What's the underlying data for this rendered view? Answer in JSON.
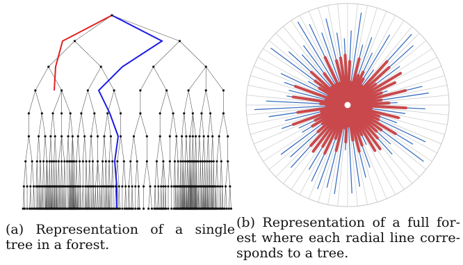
{
  "subfigure_a": {
    "caption_line1": "(a)  Representation  of  a  single",
    "caption_line2": "tree in a forest."
  },
  "subfigure_b": {
    "caption_line1": "(b) Representation of a full for-",
    "caption_line2": "est where each radial line corre-",
    "caption_line3": "sponds to a tree."
  },
  "colors": {
    "highlight_red": "#e02020",
    "highlight_blue": "#1a1ae6",
    "radial_red": "#c9484c",
    "radial_blue": "#3a6fc0",
    "grid_gray": "#c8c8c8",
    "node_black": "#111111"
  }
}
